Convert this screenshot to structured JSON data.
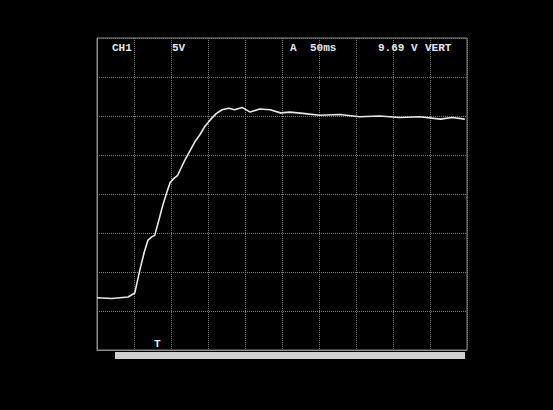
{
  "chart_data": {
    "type": "line",
    "annotations": [
      "CH1",
      "5V",
      "A",
      "50ms",
      "9.69 V",
      "VERT"
    ],
    "trigger_marker": "T",
    "x": [
      0,
      20,
      42,
      51,
      58,
      64,
      69,
      74,
      78,
      84,
      89,
      95,
      99,
      104,
      109,
      118,
      126,
      133,
      139,
      146,
      153,
      161,
      169,
      178,
      186,
      196,
      207,
      220,
      234,
      248,
      261,
      281,
      301,
      328,
      355,
      382,
      409,
      436,
      464,
      480,
      497
    ],
    "series": [
      {
        "name": "CH1",
        "color": "#e8e8e8",
        "marker": "none",
        "line_style": "solid",
        "values": [
          6.7,
          6.6,
          6.8,
          7.3,
          10.3,
          12.6,
          14.1,
          14.5,
          14.7,
          16.8,
          18.6,
          20.4,
          21.5,
          22.0,
          22.4,
          24.2,
          25.6,
          26.8,
          27.6,
          28.7,
          29.5,
          30.3,
          30.8,
          31.0,
          30.8,
          31.1,
          30.5,
          30.9,
          30.8,
          30.4,
          30.5,
          30.3,
          30.1,
          30.2,
          29.9,
          30.0,
          29.8,
          29.9,
          29.6,
          29.8,
          29.6
        ]
      }
    ],
    "xlim": [
      0,
      500
    ],
    "xticks": [
      0,
      50,
      100,
      150,
      200,
      250,
      300,
      350,
      400,
      450,
      500
    ],
    "ylim": [
      0,
      40
    ],
    "yticks": [
      0,
      5,
      10,
      15,
      20,
      25,
      30,
      35,
      40
    ],
    "grid": true,
    "tick_labels": false
  }
}
